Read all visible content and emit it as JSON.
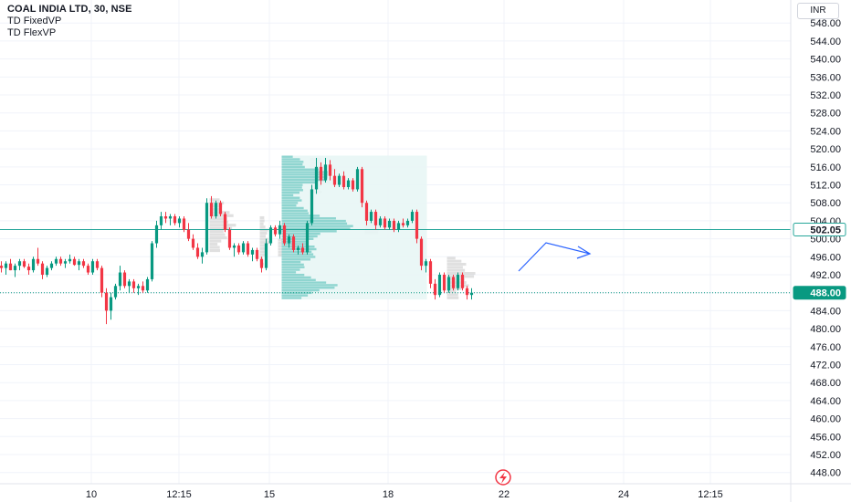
{
  "legend": {
    "title": "COAL INDIA LTD, 30, NSE",
    "indicators": [
      "TD FixedVP",
      "TD FlexVP"
    ]
  },
  "currency_label": "INR",
  "colors": {
    "up": "#089981",
    "down": "#f23645",
    "profile": "#7fcfc9",
    "profile_box": "#e8f6f5",
    "flex_profile": "#d6d6d6",
    "level_line": "#26a69a",
    "arrow": "#2962ff",
    "grid": "#f0f3fa"
  },
  "chart_data": {
    "type": "candlestick",
    "y_ticks": [
      448,
      452,
      456,
      460,
      464,
      468,
      472,
      476,
      480,
      484,
      488,
      492,
      496,
      500,
      504,
      508,
      512,
      516,
      520,
      524,
      528,
      532,
      536,
      540,
      544,
      548
    ],
    "ylim": [
      445.5,
      551.5
    ],
    "x_tick_labels": [
      "10",
      "12:15",
      "15",
      "18",
      "22",
      "24",
      "12:15"
    ],
    "bars_total": 110,
    "price_labels": [
      {
        "value": "502.05",
        "style": "outline",
        "color": "#26a69a"
      },
      {
        "value": "488.00",
        "style": "filled",
        "color": "#089981"
      }
    ],
    "horizontal_level": 502.05,
    "last_price": 488.0,
    "candles": [
      [
        494,
        495,
        492.5,
        493.5
      ],
      [
        493.5,
        495,
        492,
        494.5
      ],
      [
        494.5,
        495.5,
        493,
        493
      ],
      [
        493,
        494.5,
        491.5,
        494
      ],
      [
        494,
        495.5,
        493,
        495
      ],
      [
        495,
        495.5,
        493.5,
        493.8
      ],
      [
        493.8,
        494.5,
        492,
        493
      ],
      [
        493,
        496,
        492.5,
        495.5
      ],
      [
        495.5,
        498,
        494,
        494.5
      ],
      [
        494.5,
        495,
        491,
        492
      ],
      [
        492,
        494,
        491.5,
        493.5
      ],
      [
        493.5,
        495,
        493,
        494.5
      ],
      [
        494.5,
        496,
        494,
        495.5
      ],
      [
        495.5,
        496,
        494,
        494.5
      ],
      [
        494.5,
        495.5,
        493.5,
        495
      ],
      [
        495,
        496.5,
        494.5,
        495.5
      ],
      [
        495.5,
        496,
        494,
        494.2
      ],
      [
        494.2,
        495.5,
        493,
        495
      ],
      [
        495,
        495.5,
        493.5,
        494
      ],
      [
        494,
        494.5,
        492,
        492.5
      ],
      [
        492.5,
        495.5,
        492,
        495
      ],
      [
        495,
        495.5,
        493,
        493.5
      ],
      [
        493.5,
        494,
        487,
        488
      ],
      [
        488,
        489,
        481,
        484
      ],
      [
        484,
        488,
        482,
        487
      ],
      [
        487,
        490,
        486.5,
        489.5
      ],
      [
        489.5,
        494,
        488.5,
        492.5
      ],
      [
        492.5,
        493,
        489,
        489.5
      ],
      [
        489.5,
        491,
        488,
        490.5
      ],
      [
        490.5,
        491,
        488,
        489
      ],
      [
        489,
        490,
        487.5,
        489.5
      ],
      [
        489.5,
        490.5,
        488,
        488.5
      ],
      [
        488.5,
        491.5,
        488,
        491
      ],
      [
        491,
        499.5,
        490.5,
        499
      ],
      [
        499,
        504,
        498,
        503
      ],
      [
        503,
        506,
        502,
        505
      ],
      [
        505,
        506,
        503.5,
        504.5
      ],
      [
        504.5,
        505.5,
        503,
        505
      ],
      [
        505,
        505.5,
        503,
        503.5
      ],
      [
        503.5,
        505,
        502.5,
        504.5
      ],
      [
        504.5,
        505,
        501.5,
        502
      ],
      [
        502,
        503.5,
        499.5,
        500
      ],
      [
        500,
        501,
        497.5,
        498
      ],
      [
        498,
        499,
        495.5,
        496
      ],
      [
        496,
        498,
        494.5,
        497
      ],
      [
        497,
        509,
        496.5,
        508
      ],
      [
        508,
        509.5,
        504.5,
        505
      ],
      [
        505,
        508.5,
        504.5,
        508
      ],
      [
        508,
        508.5,
        505,
        505.5
      ],
      [
        505.5,
        506,
        501.5,
        502
      ],
      [
        502,
        502.5,
        497.5,
        498
      ],
      [
        498,
        499,
        496,
        498.5
      ],
      [
        498.5,
        499,
        496.5,
        497
      ],
      [
        497,
        499.5,
        496.5,
        499
      ],
      [
        499,
        499.5,
        496,
        496.5
      ],
      [
        496.5,
        498,
        495,
        497.5
      ],
      [
        497.5,
        498,
        495,
        495.5
      ],
      [
        495.5,
        496,
        492.5,
        493.5
      ],
      [
        493.5,
        500,
        493,
        499
      ],
      [
        499,
        503,
        498.5,
        502.5
      ],
      [
        502.5,
        503,
        500.5,
        501
      ],
      [
        501,
        504,
        500,
        503
      ],
      [
        503,
        503.5,
        498.5,
        499
      ],
      [
        499,
        501,
        498,
        500.5
      ],
      [
        500.5,
        501,
        497,
        497.5
      ],
      [
        497.5,
        498.5,
        496.5,
        498
      ],
      [
        498,
        499,
        496.5,
        497
      ],
      [
        497,
        504,
        496.5,
        503.5
      ],
      [
        503.5,
        512,
        503,
        511
      ],
      [
        511,
        518,
        510,
        516
      ],
      [
        516,
        517,
        512,
        513
      ],
      [
        513,
        518,
        512.5,
        516.5
      ],
      [
        516.5,
        517.5,
        513,
        514
      ],
      [
        514,
        515.5,
        511.5,
        512
      ],
      [
        512,
        514.5,
        511.5,
        514
      ],
      [
        514,
        515,
        511,
        511.5
      ],
      [
        511.5,
        513.5,
        511,
        513
      ],
      [
        513,
        513.5,
        510.5,
        511
      ],
      [
        511,
        516,
        510.5,
        515.5
      ],
      [
        515.5,
        516,
        507,
        508
      ],
      [
        508,
        508.5,
        503,
        504
      ],
      [
        504,
        506.5,
        503.5,
        506
      ],
      [
        506,
        506.5,
        502,
        503
      ],
      [
        503,
        505,
        502.5,
        504.5
      ],
      [
        504.5,
        505,
        502,
        502.5
      ],
      [
        502.5,
        504.5,
        502,
        504
      ],
      [
        504,
        504.5,
        501.5,
        502
      ],
      [
        502,
        504,
        501.5,
        503.5
      ],
      [
        503.5,
        504.5,
        502.5,
        503
      ],
      [
        503,
        504.5,
        502.5,
        504
      ],
      [
        504,
        506.5,
        503.5,
        506
      ],
      [
        506,
        506.5,
        499,
        500
      ],
      [
        500,
        500.5,
        493,
        494
      ],
      [
        494,
        495.5,
        492.5,
        495
      ],
      [
        495,
        495.5,
        489,
        490
      ],
      [
        490,
        491,
        486.5,
        487.5
      ],
      [
        487.5,
        492.5,
        487,
        492
      ],
      [
        492,
        492.5,
        488,
        488.5
      ],
      [
        488.5,
        492,
        488,
        491.5
      ],
      [
        491.5,
        492,
        488.5,
        489
      ],
      [
        489,
        492.5,
        488.5,
        492
      ],
      [
        492,
        492.5,
        488.5,
        489
      ],
      [
        489,
        489.5,
        486.5,
        487.5
      ],
      [
        487.5,
        489,
        486.5,
        488
      ]
    ],
    "annotations": [
      {
        "type": "fixed_volume_profile",
        "bar_range": [
          61,
          93
        ],
        "price_range": [
          486.5,
          518.5
        ]
      },
      {
        "type": "flex_volume_profile",
        "segments": 6
      },
      {
        "type": "projection_arrow",
        "direction": "up-then-down"
      }
    ]
  }
}
